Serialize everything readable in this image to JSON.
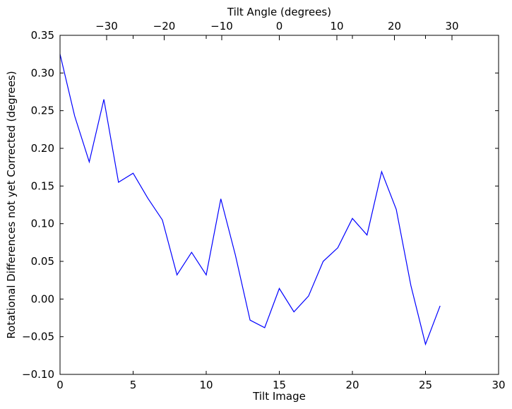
{
  "chart_data": {
    "type": "line",
    "title": "",
    "xlabel": "Tilt Image",
    "ylabel": "Rotational Differences not yet Corrected (degrees)",
    "top_xlabel": "Tilt Angle (degrees)",
    "xlim": [
      0,
      30
    ],
    "ylim": [
      -0.1,
      0.35
    ],
    "top_xlim": [
      -38.1,
      38.1
    ],
    "grid": false,
    "legend": "none",
    "line_color": "#0000ff",
    "x_ticks": [
      0,
      5,
      10,
      15,
      20,
      25,
      30
    ],
    "x_tick_labels": [
      "0",
      "5",
      "10",
      "15",
      "20",
      "25",
      "30"
    ],
    "y_ticks": [
      -0.1,
      -0.05,
      0.0,
      0.05,
      0.1,
      0.15,
      0.2,
      0.25,
      0.3,
      0.35
    ],
    "y_tick_labels": [
      "−0.10",
      "−0.05",
      "0.00",
      "0.05",
      "0.10",
      "0.15",
      "0.20",
      "0.25",
      "0.30",
      "0.35"
    ],
    "top_x_ticks": [
      -30,
      -20,
      -10,
      0,
      10,
      20,
      30
    ],
    "top_x_tick_labels": [
      "−30",
      "−20",
      "−10",
      "0",
      "10",
      "20",
      "30"
    ],
    "series": [
      {
        "x": [
          0,
          1,
          2,
          3,
          4,
          5,
          6,
          7,
          8,
          9,
          10,
          11,
          12,
          13,
          14,
          15,
          16,
          17,
          18,
          19,
          20,
          21,
          22,
          23,
          24,
          25,
          26
        ],
        "values": [
          0.325,
          0.243,
          0.182,
          0.265,
          0.155,
          0.167,
          0.134,
          0.105,
          0.032,
          0.062,
          0.032,
          0.133,
          0.058,
          -0.028,
          -0.038,
          0.014,
          -0.017,
          0.004,
          0.05,
          0.068,
          0.107,
          0.085,
          0.169,
          0.119,
          0.018,
          -0.06,
          -0.009
        ]
      }
    ]
  }
}
